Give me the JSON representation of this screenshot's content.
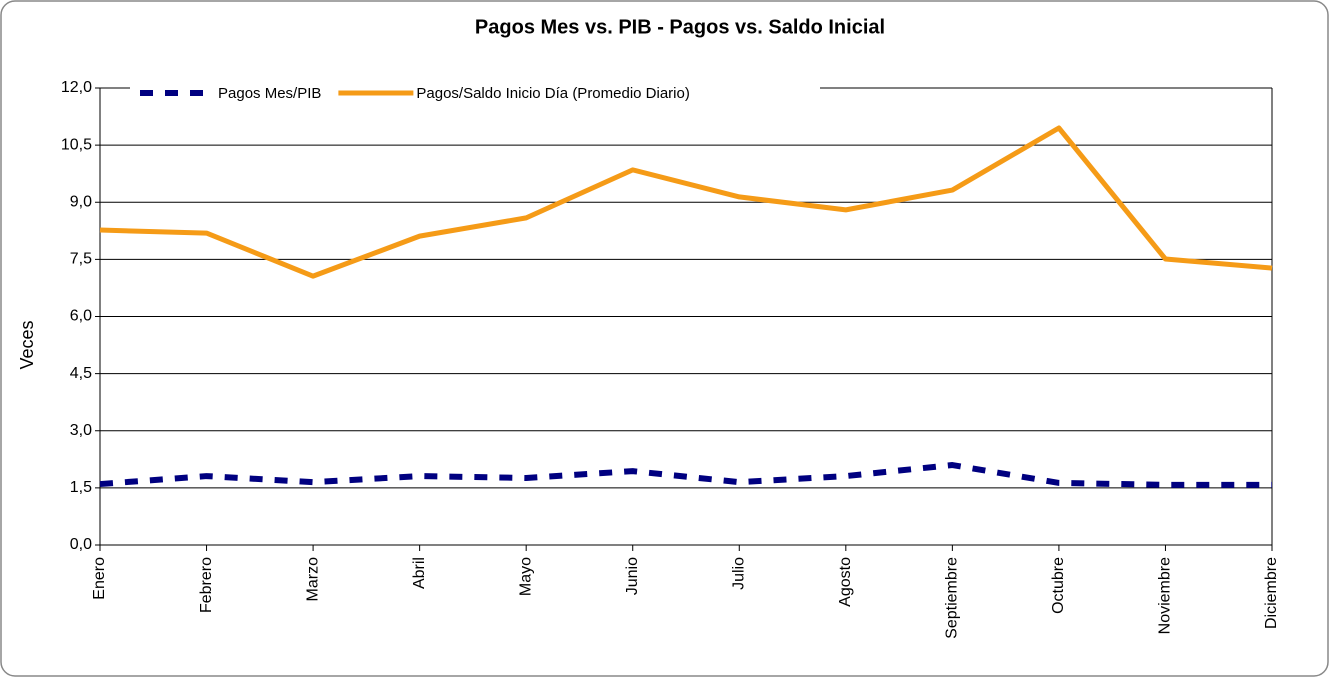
{
  "chart_data": {
    "type": "line",
    "title": "Pagos Mes vs. PIB  -  Pagos vs. Saldo Inicial",
    "y_label": "Veces",
    "categories": [
      "Enero",
      "Febrero",
      "Marzo",
      "Abril",
      "Mayo",
      "Junio",
      "Julio",
      "Agosto",
      "Septiembre",
      "Octubre",
      "Noviembre",
      "Diciembre"
    ],
    "series": [
      {
        "name": "Pagos Mes/PIB",
        "color": "#000080",
        "dashed": true,
        "values": [
          1.6,
          1.81,
          1.65,
          1.81,
          1.76,
          1.94,
          1.65,
          1.81,
          2.1,
          1.63,
          1.58,
          1.58
        ]
      },
      {
        "name": "Pagos/Saldo Inicio Día (Promedio Diario)",
        "color": "#f59b17",
        "dashed": false,
        "values": [
          8.27,
          8.19,
          7.06,
          8.11,
          8.59,
          9.85,
          9.14,
          8.8,
          9.32,
          10.95,
          7.51,
          7.27
        ]
      }
    ],
    "ylim": [
      0,
      12
    ],
    "yticks": [
      {
        "value": 0,
        "label": "0,0"
      },
      {
        "value": 1.5,
        "label": "1,5"
      },
      {
        "value": 3,
        "label": "3,0"
      },
      {
        "value": 4.5,
        "label": "4,5"
      },
      {
        "value": 6,
        "label": "6,0"
      },
      {
        "value": 7.5,
        "label": "7,5"
      },
      {
        "value": 9,
        "label": "9,0"
      },
      {
        "value": 10.5,
        "label": "10,5"
      },
      {
        "value": 12,
        "label": "12,0"
      }
    ],
    "grid": true,
    "legend": "top-left"
  }
}
